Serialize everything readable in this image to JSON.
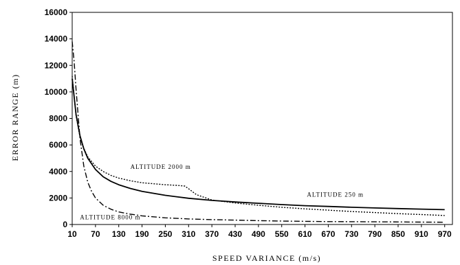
{
  "chart_data": {
    "type": "line",
    "xlabel": "SPEED VARIANCE (m/s)",
    "ylabel": "ERROR RANGE (m)",
    "xlim": [
      10,
      990
    ],
    "ylim": [
      0,
      16000
    ],
    "x_ticks": [
      10,
      70,
      130,
      190,
      250,
      310,
      370,
      430,
      490,
      550,
      610,
      670,
      730,
      790,
      850,
      910,
      970
    ],
    "y_ticks": [
      0,
      2000,
      4000,
      6000,
      8000,
      10000,
      12000,
      14000,
      16000
    ],
    "grid": false,
    "legend": "none",
    "series": [
      {
        "name": "ALTITUDE 250 m",
        "style": "solid",
        "x": [
          10,
          20,
          30,
          40,
          50,
          70,
          90,
          110,
          130,
          160,
          190,
          250,
          310,
          370,
          430,
          490,
          550,
          610,
          670,
          730,
          790,
          850,
          910,
          970
        ],
        "y": [
          11000,
          8300,
          6700,
          5700,
          5000,
          4150,
          3600,
          3250,
          3000,
          2720,
          2500,
          2200,
          1980,
          1820,
          1700,
          1600,
          1500,
          1420,
          1360,
          1300,
          1250,
          1200,
          1160,
          1120
        ]
      },
      {
        "name": "ALTITUDE 2000 m",
        "style": "dotted",
        "x": [
          10,
          20,
          30,
          40,
          50,
          70,
          90,
          110,
          130,
          160,
          190,
          250,
          280,
          300,
          310,
          330,
          370,
          430,
          490,
          550,
          610,
          670,
          730,
          790,
          850,
          910,
          970
        ],
        "y": [
          11200,
          8200,
          6600,
          5750,
          5100,
          4400,
          4000,
          3700,
          3500,
          3300,
          3150,
          3000,
          2950,
          2900,
          2700,
          2250,
          1850,
          1620,
          1450,
          1300,
          1180,
          1080,
          980,
          900,
          820,
          750,
          680
        ]
      },
      {
        "name": "ALTITUDE 8000 m",
        "style": "dash-dot",
        "x": [
          10,
          15,
          20,
          30,
          40,
          50,
          60,
          70,
          90,
          110,
          130,
          160,
          190,
          250,
          310,
          370,
          430,
          490,
          550,
          610,
          670,
          730,
          790,
          850,
          910,
          970
        ],
        "y": [
          13800,
          12300,
          10200,
          6500,
          4400,
          3200,
          2500,
          2000,
          1450,
          1150,
          950,
          780,
          650,
          500,
          420,
          370,
          330,
          290,
          260,
          240,
          220,
          210,
          200,
          190,
          180,
          170
        ]
      }
    ],
    "annotations": [
      {
        "text": "ALTITUDE 2000 m",
        "x": 160,
        "y": 4200
      },
      {
        "text": "ALTITUDE 250 m",
        "x": 615,
        "y": 2100
      },
      {
        "text": "ALTITUDE 8000 m",
        "x": 30,
        "y": 400
      }
    ]
  }
}
